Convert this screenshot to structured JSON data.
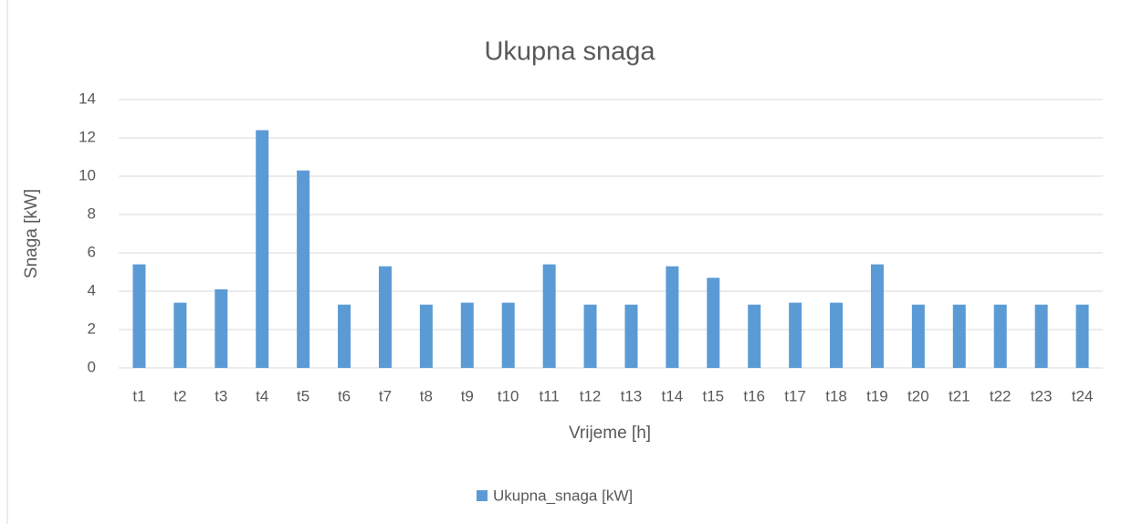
{
  "chart_data": {
    "type": "bar",
    "title": "Ukupna snaga",
    "x_label": "Vrijeme [h]",
    "y_label": "Snaga [kW]",
    "categories": [
      "t1",
      "t2",
      "t3",
      "t4",
      "t5",
      "t6",
      "t7",
      "t8",
      "t9",
      "t10",
      "t11",
      "t12",
      "t13",
      "t14",
      "t15",
      "t16",
      "t17",
      "t18",
      "t19",
      "t20",
      "t21",
      "t22",
      "t23",
      "t24"
    ],
    "series": [
      {
        "name": "Ukupna_snaga [kW]",
        "color": "#5b9bd5",
        "values": [
          5.4,
          3.4,
          4.1,
          12.4,
          10.3,
          3.3,
          5.3,
          3.3,
          3.4,
          3.4,
          5.4,
          3.3,
          3.3,
          5.3,
          4.7,
          3.3,
          3.4,
          3.4,
          5.4,
          3.3,
          3.3,
          3.3,
          3.3,
          3.3
        ]
      }
    ],
    "ylim": [
      0,
      14
    ],
    "yticks": [
      0,
      2,
      4,
      6,
      8,
      10,
      12,
      14
    ],
    "grid": true,
    "legend": "bottom"
  }
}
